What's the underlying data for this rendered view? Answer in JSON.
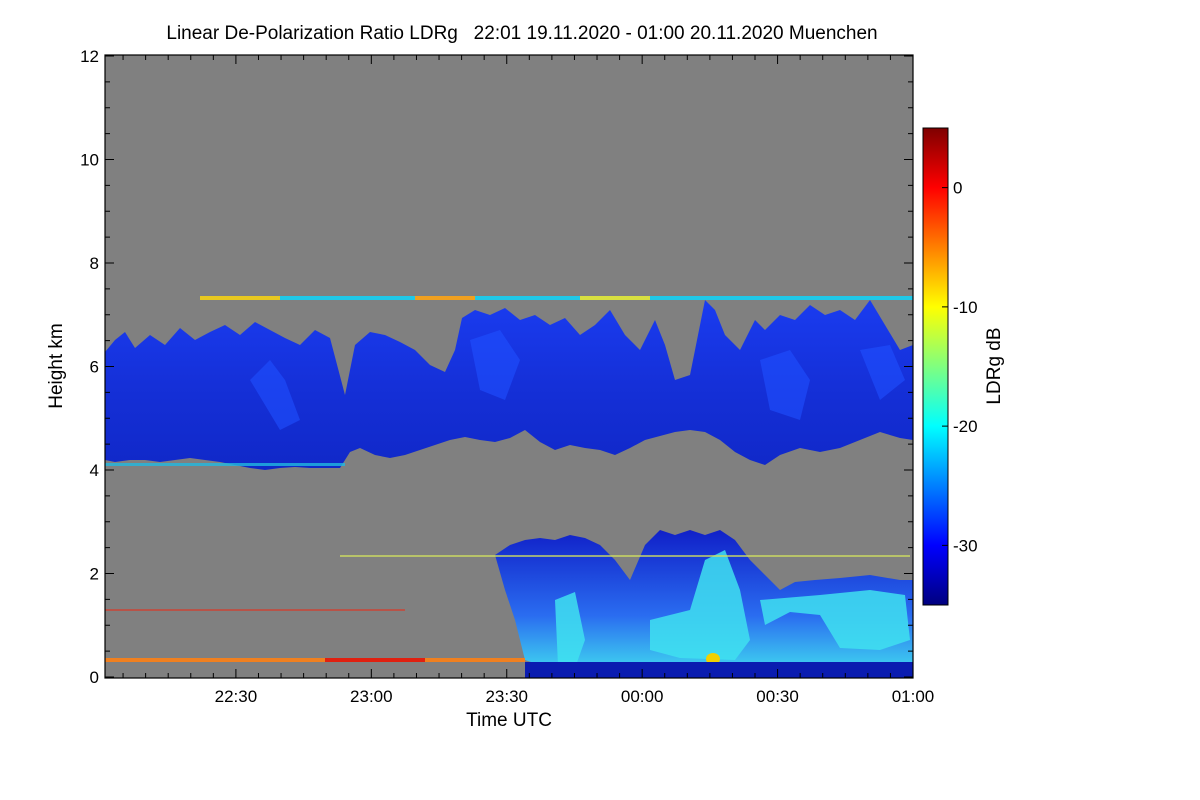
{
  "chart_data": {
    "type": "heatmap",
    "title": "Linear De-Polarization Ratio LDRg   22:01 19.11.2020 - 01:00 20.11.2020 Muenchen",
    "xlabel": "Time UTC",
    "ylabel": "Height km",
    "xlim": [
      "22:01",
      "01:00"
    ],
    "x_ticks": [
      "22:30",
      "23:00",
      "23:30",
      "00:00",
      "00:30",
      "01:00"
    ],
    "ylim": [
      0,
      12
    ],
    "y_ticks": [
      "0",
      "2",
      "4",
      "6",
      "8",
      "10",
      "12"
    ],
    "colorbar": {
      "label": "LDRg dB",
      "range": [
        -35,
        5
      ],
      "ticks": [
        "0",
        "-10",
        "-20",
        "-30"
      ],
      "colormap": "jet"
    },
    "background_color": "#808080",
    "layers": [
      {
        "name": "upper cloud layer",
        "base_km": 4.2,
        "top_km": 7.0,
        "ldr_db": -32
      },
      {
        "name": "aerosol line",
        "height_km": 7.3,
        "ldr_db": -20
      },
      {
        "name": "lower cloud / precipitation",
        "base_km": 0.0,
        "top_km": 2.8,
        "start": "23:30",
        "ldr_db": -26
      },
      {
        "name": "ground layer",
        "height_km": 0.3,
        "ldr_db": -5
      }
    ]
  }
}
